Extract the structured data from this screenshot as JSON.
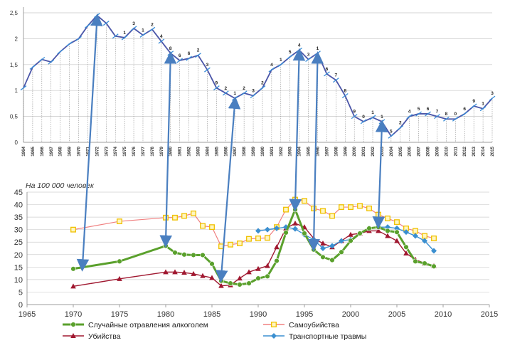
{
  "chart_data": [
    {
      "type": "line",
      "title": "",
      "xlabel": "",
      "ylabel": "",
      "ylim": [
        0,
        2.5
      ],
      "yticks": [
        "0",
        "0,5",
        "1",
        "1,5",
        "2",
        "2,5"
      ],
      "grid": true,
      "categories": [
        "1964",
        "1965",
        "1966",
        "1967",
        "1968",
        "1969",
        "1970",
        "1971",
        "1972",
        "1973",
        "1974",
        "1975",
        "1976",
        "1977",
        "1978",
        "1979",
        "1980",
        "1981",
        "1982",
        "1983",
        "1984",
        "1985",
        "1986",
        "1987",
        "1988",
        "1989",
        "1990",
        "1991",
        "1992",
        "1993",
        "1994",
        "1995",
        "1996",
        "1997",
        "1998",
        "1999",
        "2000",
        "2001",
        "2002",
        "2003",
        "2004",
        "2005",
        "2006",
        "2007",
        "2008",
        "2009",
        "2010",
        "2011",
        "2012",
        "2013",
        "2014",
        "2015"
      ],
      "series": [
        {
          "name": "",
          "color": "#4a55a8",
          "values": [
            1.05,
            1.45,
            1.6,
            1.55,
            1.75,
            1.9,
            2.0,
            2.25,
            2.45,
            2.3,
            2.05,
            2.02,
            2.2,
            2.07,
            2.18,
            1.95,
            1.72,
            1.58,
            1.62,
            1.68,
            1.4,
            1.05,
            0.95,
            0.85,
            0.95,
            0.9,
            1.05,
            1.4,
            1.5,
            1.65,
            1.78,
            1.6,
            1.72,
            1.32,
            1.2,
            0.9,
            0.5,
            0.4,
            0.48,
            0.4,
            0.12,
            0.28,
            0.5,
            0.55,
            0.55,
            0.5,
            0.45,
            0.45,
            0.55,
            0.7,
            0.65,
            0.85
          ]
        }
      ],
      "point_labels": [
        "",
        "",
        "",
        "",
        "",
        "",
        "",
        "",
        "",
        "",
        "",
        "1",
        "3",
        "1",
        "2",
        "4",
        "8",
        "6",
        "6",
        "2",
        "3",
        "9",
        "2",
        "1",
        "2",
        "3",
        "2",
        "4",
        "1",
        "5",
        "4",
        "3",
        "1",
        "6",
        "7",
        "8",
        "9",
        "0",
        "1",
        "1",
        "5",
        "2",
        "4",
        "5",
        "6",
        "7",
        "8",
        "0",
        "6",
        "9",
        "1",
        "3"
      ]
    },
    {
      "type": "line",
      "title": "",
      "annotation": "На 100 000 человек",
      "xlim": [
        1965,
        2015
      ],
      "ylim": [
        0,
        45
      ],
      "xticks": [
        "1965",
        "1970",
        "1975",
        "1980",
        "1985",
        "1990",
        "1995",
        "2000",
        "2005",
        "2010",
        "2015"
      ],
      "yticks": [
        "0",
        "5",
        "10",
        "15",
        "20",
        "25",
        "30",
        "35",
        "40",
        "45"
      ],
      "grid": true,
      "legend_position": "bottom",
      "series": [
        {
          "name": "Случайные отравления алкоголем",
          "color": "#5aa02c",
          "marker": "circle",
          "x": [
            1970,
            1975,
            1980,
            1981,
            1982,
            1983,
            1984,
            1985,
            1986,
            1987,
            1988,
            1989,
            1990,
            1991,
            1992,
            1993,
            1994,
            1995,
            1996,
            1997,
            1998,
            1999,
            2000,
            2001,
            2002,
            2003,
            2004,
            2005,
            2006,
            2007,
            2008,
            2009
          ],
          "y": [
            14.3,
            17.3,
            23.5,
            20.8,
            20.0,
            19.8,
            19.8,
            16.3,
            9.5,
            8.5,
            8.0,
            8.5,
            10.5,
            11.3,
            17.5,
            28.8,
            38.0,
            28.5,
            22.0,
            19.0,
            17.8,
            21.0,
            25.5,
            28.5,
            30.5,
            31.0,
            29.5,
            29.0,
            23.0,
            17.3,
            16.5,
            15.3
          ]
        },
        {
          "name": "Самоубийства",
          "color": "#f0c000",
          "marker": "square",
          "x": [
            1970,
            1975,
            1980,
            1981,
            1982,
            1983,
            1984,
            1985,
            1986,
            1987,
            1988,
            1989,
            1990,
            1991,
            1992,
            1993,
            1994,
            1995,
            1996,
            1997,
            1998,
            1999,
            2000,
            2001,
            2002,
            2003,
            2004,
            2005,
            2006,
            2007,
            2008,
            2009
          ],
          "y": [
            30.0,
            33.3,
            34.8,
            34.8,
            35.5,
            36.5,
            31.5,
            31.0,
            23.3,
            24.0,
            24.5,
            26.3,
            26.5,
            26.7,
            31.0,
            38.0,
            42.0,
            41.5,
            38.5,
            37.5,
            35.5,
            39.0,
            39.0,
            39.5,
            38.5,
            36.0,
            34.5,
            33.0,
            30.5,
            29.5,
            27.5,
            26.5
          ]
        },
        {
          "name": "Убийства",
          "color": "#a01830",
          "marker": "triangle",
          "x": [
            1970,
            1975,
            1980,
            1981,
            1982,
            1983,
            1984,
            1985,
            1986,
            1987,
            1988,
            1989,
            1990,
            1991,
            1992,
            1993,
            1994,
            1995,
            1996,
            1997,
            1998,
            1999,
            2000,
            2001,
            2002,
            2003,
            2004,
            2005,
            2006,
            2007,
            2008,
            2009
          ],
          "y": [
            7.3,
            10.3,
            13.0,
            13.0,
            12.8,
            12.3,
            11.5,
            10.7,
            7.5,
            7.8,
            10.5,
            13.0,
            14.3,
            15.5,
            23.0,
            30.5,
            32.5,
            31.0,
            26.5,
            24.5,
            23.0,
            25.5,
            28.0,
            28.5,
            29.5,
            29.5,
            27.5,
            25.5,
            20.5,
            18.0,
            16.5,
            15.5
          ]
        },
        {
          "name": "Транспортные травмы",
          "color": "#3b8fd0",
          "marker": "diamond",
          "x": [
            1990,
            1991,
            1992,
            1993,
            1994,
            1995,
            1996,
            1997,
            1998,
            1999,
            2000,
            2001,
            2002,
            2003,
            2004,
            2005,
            2006,
            2007,
            2008,
            2009
          ],
          "y": [
            29.5,
            30.0,
            30.5,
            31.0,
            30.3,
            28.0,
            26.0,
            22.5,
            23.5,
            25.5,
            26.0,
            28.5,
            30.5,
            31.0,
            31.0,
            30.5,
            29.0,
            27.5,
            25.5,
            21.5
          ]
        }
      ]
    }
  ],
  "arrows": [
    {
      "top_year": "1972",
      "bottom_year": 1971
    },
    {
      "top_year": "1980",
      "bottom_year": 1980
    },
    {
      "top_year": "1987",
      "bottom_year": 1986
    },
    {
      "top_year": "1994",
      "bottom_year": 1994
    },
    {
      "top_year": "1996",
      "bottom_year": 1996
    },
    {
      "top_year": "2003",
      "bottom_year": 2003
    }
  ]
}
